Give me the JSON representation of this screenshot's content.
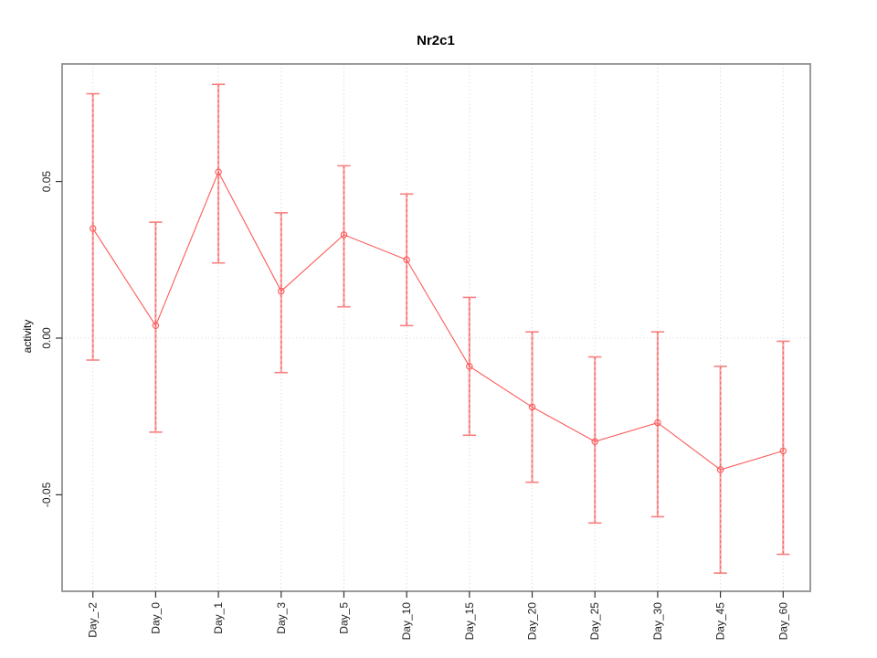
{
  "window": {
    "kind": "r-plot-figure"
  },
  "chart_data": {
    "type": "line",
    "title": "Nr2c1",
    "xlabel": "",
    "ylabel": "activity",
    "categories": [
      "Day_-2",
      "Day_0",
      "Day_1",
      "Day_3",
      "Day_5",
      "Day_10",
      "Day_15",
      "Day_20",
      "Day_25",
      "Day_30",
      "Day_45",
      "Day_60"
    ],
    "series": [
      {
        "name": "activity",
        "values": [
          0.035,
          0.004,
          0.053,
          0.015,
          0.033,
          0.025,
          -0.009,
          -0.022,
          -0.033,
          -0.027,
          -0.042,
          -0.036
        ]
      }
    ],
    "error_bars": {
      "upper": [
        0.078,
        0.037,
        0.081,
        0.04,
        0.055,
        0.046,
        0.013,
        0.002,
        -0.006,
        0.002,
        -0.009,
        -0.001
      ],
      "lower": [
        -0.007,
        -0.03,
        0.024,
        -0.011,
        0.01,
        0.004,
        -0.031,
        -0.046,
        -0.059,
        -0.057,
        -0.075,
        -0.069
      ]
    },
    "ylim": [
      -0.0808,
      0.0875
    ],
    "y_ticks": [
      -0.05,
      0,
      0.05
    ],
    "y_tick_labels": [
      "-0.05",
      "0.00",
      "0.05"
    ],
    "grid": "dotted vertical line per category; dotted horizontal line at y=0",
    "legend": "none",
    "marker": "open-circle",
    "colors": {
      "series": "#fc5a5a",
      "error_bar_fill": "#f7a8a8",
      "error_bar_dash": "#fa6060",
      "error_bar_cap": "#f98080",
      "grid": "#d4d4d4",
      "box": "#909090",
      "tick": "#333333",
      "text": "#1c1c1c"
    }
  }
}
